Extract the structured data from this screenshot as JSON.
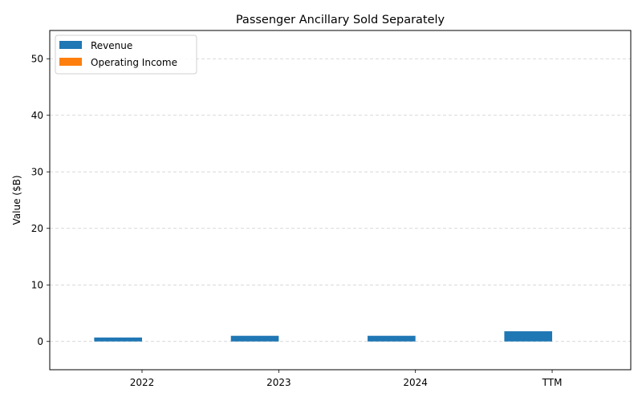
{
  "chart_data": {
    "type": "bar",
    "title": "Passenger Ancillary Sold Separately",
    "xlabel": "",
    "ylabel": "Value ($B)",
    "categories": [
      "2022",
      "2023",
      "2024",
      "TTM"
    ],
    "series": [
      {
        "name": "Revenue",
        "values": [
          0.7,
          1.0,
          1.0,
          1.8
        ],
        "color": "#1f77b4"
      },
      {
        "name": "Operating Income",
        "values": [
          0,
          0,
          0,
          0
        ],
        "color": "#ff7f0e"
      }
    ],
    "ylim": [
      -5,
      55
    ],
    "yticks": [
      0,
      10,
      20,
      30,
      40,
      50
    ],
    "grid": true,
    "legend": "top-left"
  }
}
